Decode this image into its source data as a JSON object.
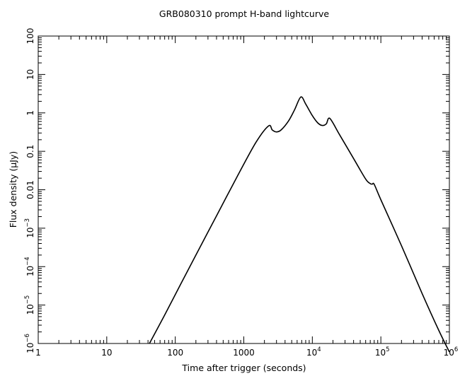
{
  "chart_data": {
    "type": "line",
    "title": "GRB080310 prompt H-band lightcurve",
    "xlabel": "Time after trigger (seconds)",
    "ylabel_prefix": "Flux density (",
    "ylabel_unit_mu": "μ",
    "ylabel_suffix": "Jy)",
    "x_scale": "log",
    "y_scale": "log",
    "xlim": [
      1,
      1000000
    ],
    "ylim": [
      1e-06,
      100
    ],
    "grid": false,
    "x_ticks": [
      {
        "value": 1,
        "base": "1",
        "exp": ""
      },
      {
        "value": 10,
        "base": "10",
        "exp": ""
      },
      {
        "value": 100,
        "base": "100",
        "exp": ""
      },
      {
        "value": 1000,
        "base": "1000",
        "exp": ""
      },
      {
        "value": 10000,
        "base": "10",
        "exp": "4"
      },
      {
        "value": 100000,
        "base": "10",
        "exp": "5"
      },
      {
        "value": 1000000,
        "base": "10",
        "exp": "6"
      }
    ],
    "y_ticks": [
      {
        "value": 1e-06,
        "base": "10",
        "exp": "−6"
      },
      {
        "value": 1e-05,
        "base": "10",
        "exp": "−5"
      },
      {
        "value": 0.0001,
        "base": "10",
        "exp": "−4"
      },
      {
        "value": 0.001,
        "base": "10",
        "exp": "−3"
      },
      {
        "value": 0.01,
        "base": "0.01",
        "exp": ""
      },
      {
        "value": 0.1,
        "base": "0.1",
        "exp": ""
      },
      {
        "value": 1,
        "base": "1",
        "exp": ""
      },
      {
        "value": 10,
        "base": "10",
        "exp": ""
      },
      {
        "value": 100,
        "base": "100",
        "exp": ""
      }
    ],
    "series": [
      {
        "color": "#000000",
        "x": [
          42,
          70,
          120,
          200,
          400,
          800,
          1500,
          2300,
          2600,
          3000,
          3500,
          4500,
          5500,
          6800,
          8000,
          10000,
          12000,
          14000,
          16000,
          18000,
          25000,
          40000,
          60000,
          70000,
          75000,
          80000,
          100000,
          200000,
          400000,
          700000,
          1000000
        ],
        "y": [
          1e-06,
          5.5e-06,
          3.5e-05,
          0.0002,
          0.0021,
          0.022,
          0.17,
          0.46,
          0.36,
          0.32,
          0.36,
          0.62,
          1.2,
          2.6,
          1.7,
          0.85,
          0.55,
          0.47,
          0.52,
          0.72,
          0.27,
          0.065,
          0.019,
          0.0145,
          0.014,
          0.0138,
          0.0055,
          0.00035,
          2e-05,
          2.2e-06,
          6e-07
        ]
      }
    ]
  }
}
